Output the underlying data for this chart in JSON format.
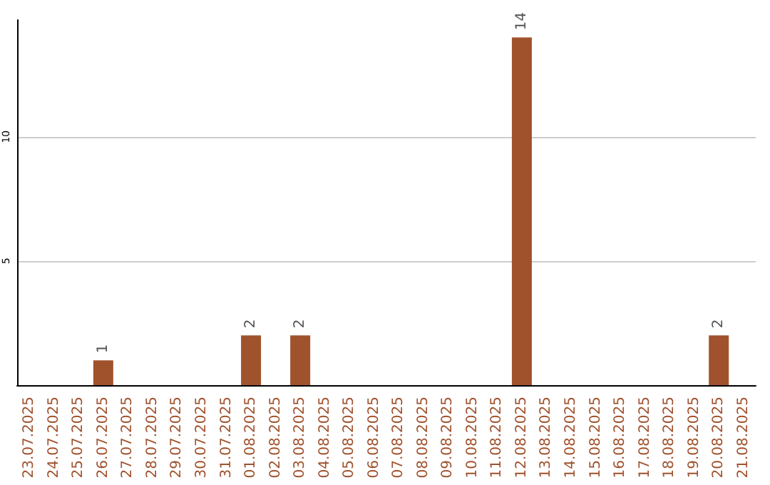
{
  "chart_data": {
    "type": "bar",
    "categories": [
      "23.07.2025",
      "24.07.2025",
      "25.07.2025",
      "26.07.2025",
      "27.07.2025",
      "28.07.2025",
      "29.07.2025",
      "30.07.2025",
      "31.07.2025",
      "01.08.2025",
      "02.08.2025",
      "03.08.2025",
      "04.08.2025",
      "05.08.2025",
      "06.08.2025",
      "07.08.2025",
      "08.08.2025",
      "09.08.2025",
      "10.08.2025",
      "11.08.2025",
      "12.08.2025",
      "13.08.2025",
      "14.08.2025",
      "15.08.2025",
      "16.08.2025",
      "17.08.2025",
      "18.08.2025",
      "19.08.2025",
      "20.08.2025",
      "21.08.2025"
    ],
    "values": [
      0,
      0,
      0,
      1,
      0,
      0,
      0,
      0,
      0,
      2,
      0,
      2,
      0,
      0,
      0,
      0,
      0,
      0,
      0,
      0,
      14,
      0,
      0,
      0,
      0,
      0,
      0,
      0,
      2,
      0
    ],
    "value_labels": [
      null,
      null,
      null,
      "1",
      null,
      null,
      null,
      null,
      null,
      "2",
      null,
      "2",
      null,
      null,
      null,
      null,
      null,
      null,
      null,
      null,
      "14",
      null,
      null,
      null,
      null,
      null,
      null,
      null,
      "2",
      null
    ],
    "color": "#a0522d",
    "ylim": [
      0,
      14.7
    ],
    "yticks": [
      5,
      10
    ],
    "grid": "y"
  }
}
